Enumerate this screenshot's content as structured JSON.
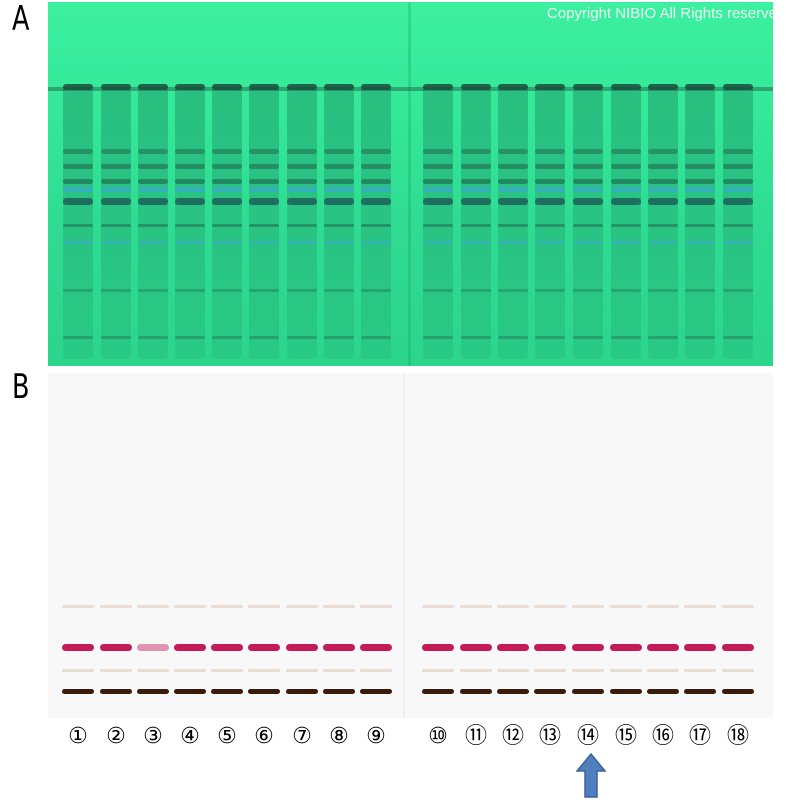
{
  "panels": {
    "a_label": "A",
    "b_label": "B"
  },
  "watermark": "Copyright NIBIO All Rights reserve",
  "lanes": [
    "①",
    "②",
    "③",
    "④",
    "⑤",
    "⑥",
    "⑦",
    "⑧",
    "⑨",
    "⑩",
    "⑪",
    "⑫",
    "⑬",
    "⑭",
    "⑮",
    "⑯",
    "⑰",
    "⑱"
  ],
  "highlighted_lane": "⑭",
  "colors": {
    "plate_a_background": "#33e898",
    "plate_a_band": "#1d5a4a",
    "plate_a_fluorescent_band": "#3aa6d6",
    "plate_b_background": "#f8f8f8",
    "plate_b_magenta_band": "#c41a5a",
    "plate_b_dark_band": "#3a1a08",
    "arrow": "#4f7fbf"
  }
}
